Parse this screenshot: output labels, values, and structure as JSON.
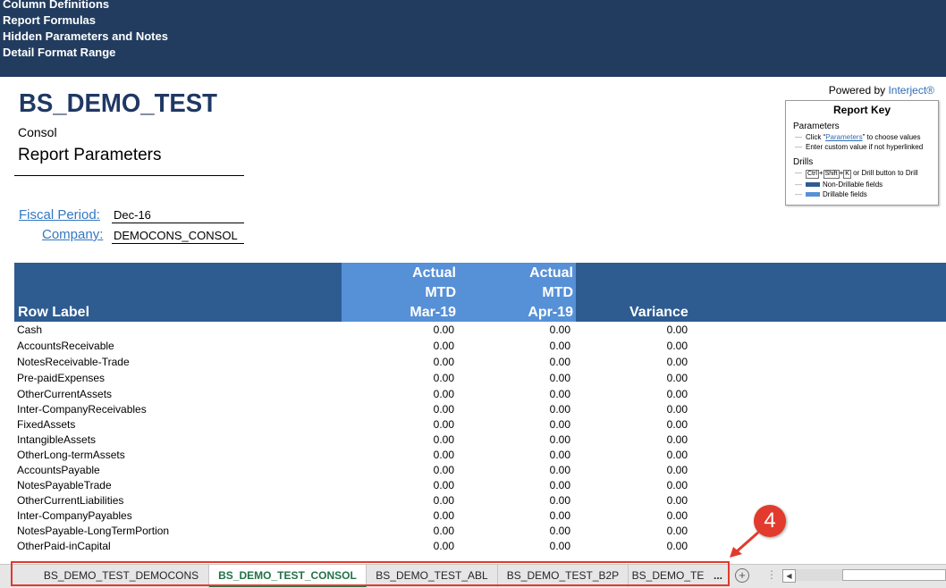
{
  "top_links": [
    "Column Definitions",
    "Report Formulas",
    "Hidden Parameters and Notes",
    "Detail Format Range"
  ],
  "report": {
    "title": "BS_DEMO_TEST",
    "entity": "Consol",
    "params_heading": "Report Parameters",
    "fiscal_period_label": "Fiscal Period:",
    "fiscal_period_value": "Dec-16",
    "company_label": "Company:",
    "company_value": "DEMOCONS_CONSOL"
  },
  "powered_by": {
    "prefix": "Powered by ",
    "brand": "Interject®"
  },
  "report_key": {
    "title": "Report Key",
    "parameters_heading": "Parameters",
    "param_line1_pre": "Click “",
    "param_line1_link": "Parameters",
    "param_line1_post": "” to choose values",
    "param_line2": "Enter custom value if not hyperlinked",
    "drills_heading": "Drills",
    "key_ctrl": "Ctrl",
    "key_shift": "Shift",
    "key_k": "K",
    "drill_line1": "or Drill button to Drill",
    "drill_line2": "Non-Drillable fields",
    "drill_line3": "Drillable fields"
  },
  "table": {
    "row_label_header": "Row Label",
    "col1": {
      "line1": "Actual",
      "line2": "MTD",
      "line3": "Mar-19"
    },
    "col2": {
      "line1": "Actual",
      "line2": "MTD",
      "line3": "Apr-19"
    },
    "col3": "Variance",
    "rows": [
      {
        "label": "Cash",
        "mar": "0.00",
        "apr": "0.00",
        "var": "0.00"
      },
      {
        "label": "AccountsReceivable",
        "mar": "0.00",
        "apr": "0.00",
        "var": "0.00"
      },
      {
        "label": "NotesReceivable-Trade",
        "mar": "0.00",
        "apr": "0.00",
        "var": "0.00"
      },
      {
        "label": "Pre-paidExpenses",
        "mar": "0.00",
        "apr": "0.00",
        "var": "0.00"
      },
      {
        "label": "OtherCurrentAssets",
        "mar": "0.00",
        "apr": "0.00",
        "var": "0.00"
      },
      {
        "label": "Inter-CompanyReceivables",
        "mar": "0.00",
        "apr": "0.00",
        "var": "0.00"
      },
      {
        "label": "FixedAssets",
        "mar": "0.00",
        "apr": "0.00",
        "var": "0.00"
      },
      {
        "label": "IntangibleAssets",
        "mar": "0.00",
        "apr": "0.00",
        "var": "0.00"
      },
      {
        "label": "OtherLong-termAssets",
        "mar": "0.00",
        "apr": "0.00",
        "var": "0.00"
      },
      {
        "label": "AccountsPayable",
        "mar": "0.00",
        "apr": "0.00",
        "var": "0.00"
      },
      {
        "label": "NotesPayableTrade",
        "mar": "0.00",
        "apr": "0.00",
        "var": "0.00"
      },
      {
        "label": "OtherCurrentLiabilities",
        "mar": "0.00",
        "apr": "0.00",
        "var": "0.00"
      },
      {
        "label": "Inter-CompanyPayables",
        "mar": "0.00",
        "apr": "0.00",
        "var": "0.00"
      },
      {
        "label": "NotesPayable-LongTermPortion",
        "mar": "0.00",
        "apr": "0.00",
        "var": "0.00"
      },
      {
        "label": "OtherPaid-inCapital",
        "mar": "0.00",
        "apr": "0.00",
        "var": "0.00"
      }
    ]
  },
  "sheet_tabs": {
    "tabs": [
      "BS_DEMO_TEST_DEMOCONS",
      "BS_DEMO_TEST_CONSOL",
      "BS_DEMO_TEST_ABL",
      "BS_DEMO_TEST_B2P",
      "BS_DEMO_TE"
    ],
    "active_index": 1,
    "overflow": "...",
    "add_symbol": "+"
  },
  "annotation": {
    "number": "4"
  },
  "colors": {
    "top_band": "#213c5f",
    "header_dark": "#2e5c91",
    "header_light": "#5690d7",
    "title_blue": "#1f3864",
    "link_blue": "#3378c2",
    "active_tab_green": "#217346",
    "callout_red": "#e23a2c"
  }
}
